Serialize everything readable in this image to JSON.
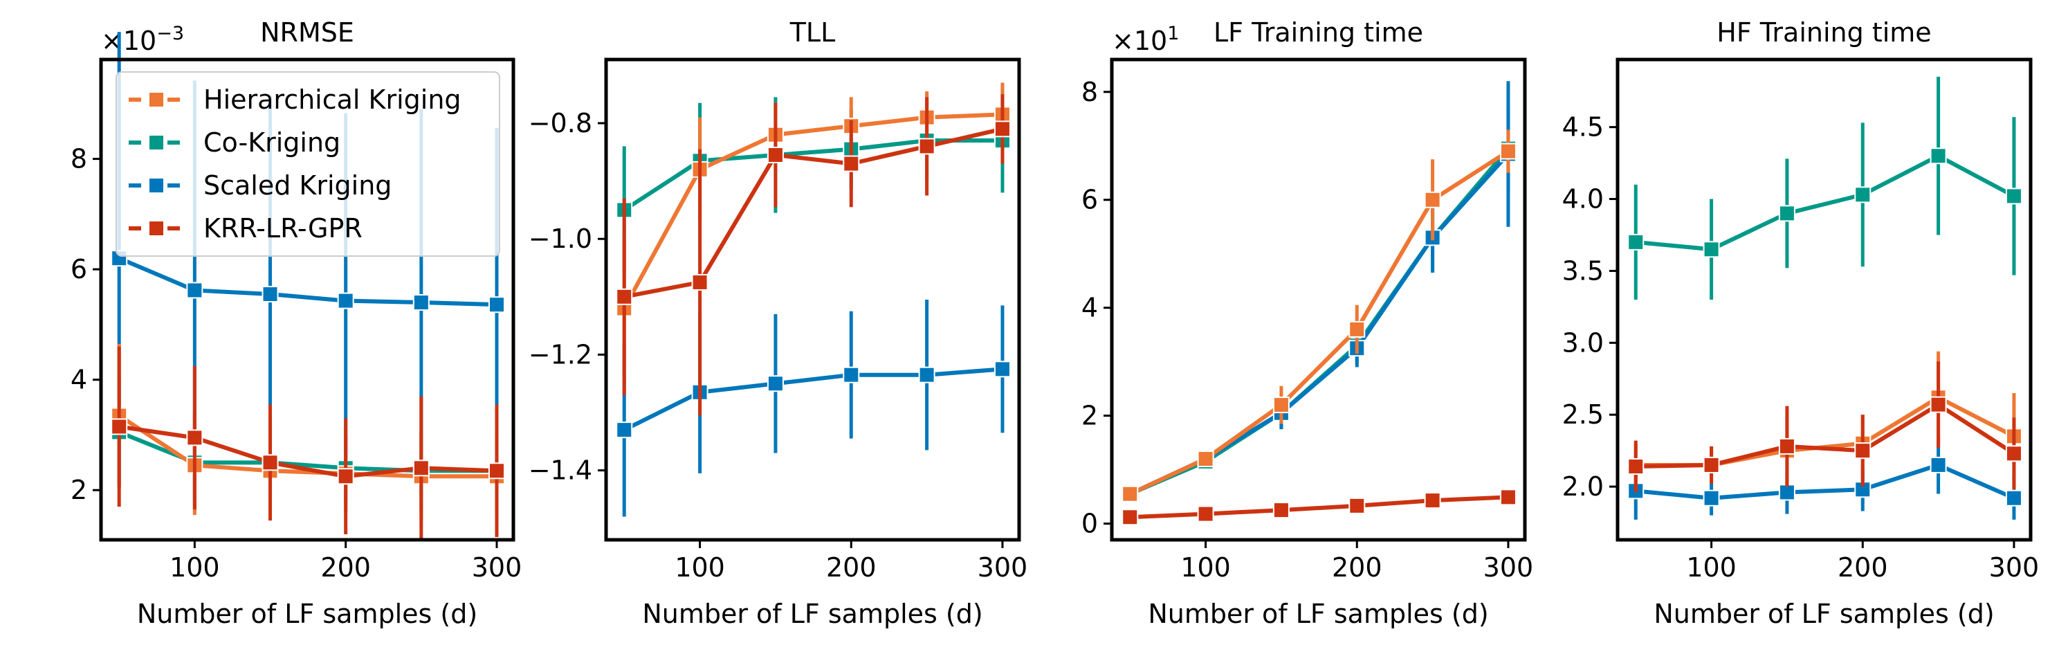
{
  "colors": {
    "Hierarchical Kriging": "#EE7733",
    "Co-Kriging": "#009988",
    "Scaled Kriging": "#0077BB",
    "KRR-LR-GPR": "#CC3311"
  },
  "chart_data": [
    {
      "type": "line",
      "title": "NRMSE",
      "xlabel": "Number of LF samples (d)",
      "ylabel": "",
      "y_multiplier": "×10",
      "y_multiplier_exp": "−3",
      "x": [
        50,
        100,
        150,
        200,
        250,
        300
      ],
      "xlim": [
        38,
        311
      ],
      "ylim": [
        1.1,
        9.8
      ],
      "xticks": [
        100,
        200,
        300
      ],
      "xtick_labels": [
        "100",
        "200",
        "300"
      ],
      "yticks": [
        2,
        4,
        6,
        8
      ],
      "ytick_labels": [
        "2",
        "4",
        "6",
        "8"
      ],
      "grid": false,
      "legend": "top-left",
      "series": [
        {
          "name": "Hierarchical Kriging",
          "values": [
            3.35,
            2.45,
            2.35,
            2.3,
            2.25,
            2.25
          ],
          "err": [
            1.3,
            0.9,
            0.85,
            0.7,
            0.8,
            0.75
          ]
        },
        {
          "name": "Co-Kriging",
          "values": [
            3.05,
            2.5,
            2.5,
            2.4,
            2.35,
            2.35
          ],
          "err": [
            1.0,
            0.9,
            0.8,
            0.6,
            0.7,
            0.75
          ]
        },
        {
          "name": "Scaled Kriging",
          "values": [
            6.2,
            5.62,
            5.55,
            5.43,
            5.4,
            5.36
          ],
          "err": [
            4.1,
            3.8,
            3.6,
            3.4,
            3.5,
            3.2
          ]
        },
        {
          "name": "KRR-LR-GPR",
          "values": [
            3.15,
            2.95,
            2.5,
            2.25,
            2.4,
            2.35
          ],
          "err": [
            1.45,
            1.3,
            1.05,
            1.05,
            1.3,
            1.2
          ]
        }
      ]
    },
    {
      "type": "line",
      "title": "TLL",
      "xlabel": "Number of LF samples (d)",
      "ylabel": "",
      "x": [
        50,
        100,
        150,
        200,
        250,
        300
      ],
      "xlim": [
        38,
        311
      ],
      "ylim": [
        -1.52,
        -0.69
      ],
      "xticks": [
        100,
        200,
        300
      ],
      "xtick_labels": [
        "100",
        "200",
        "300"
      ],
      "yticks": [
        -1.4,
        -1.2,
        -1.0,
        -0.8
      ],
      "ytick_labels": [
        "−1.4",
        "−1.2",
        "−1.0",
        "−0.8"
      ],
      "grid": false,
      "series": [
        {
          "name": "Hierarchical Kriging",
          "values": [
            -1.12,
            -0.88,
            -0.82,
            -0.805,
            -0.79,
            -0.785
          ],
          "err": [
            0.12,
            0.09,
            0.055,
            0.05,
            0.045,
            0.055
          ]
        },
        {
          "name": "Co-Kriging",
          "values": [
            -0.95,
            -0.865,
            -0.855,
            -0.845,
            -0.83,
            -0.83
          ],
          "err": [
            0.11,
            0.1,
            0.1,
            0.07,
            0.07,
            0.09
          ]
        },
        {
          "name": "Scaled Kriging",
          "values": [
            -1.33,
            -1.265,
            -1.25,
            -1.235,
            -1.235,
            -1.225
          ],
          "err": [
            0.15,
            0.14,
            0.12,
            0.11,
            0.13,
            0.11
          ]
        },
        {
          "name": "KRR-LR-GPR",
          "values": [
            -1.1,
            -1.075,
            -0.855,
            -0.87,
            -0.84,
            -0.81
          ],
          "err": [
            0.17,
            0.23,
            0.09,
            0.075,
            0.085,
            0.06
          ]
        }
      ]
    },
    {
      "type": "line",
      "title": "LF Training time",
      "xlabel": "Number of LF samples (d)",
      "ylabel": "",
      "y_multiplier": "×10",
      "y_multiplier_exp": "1",
      "x": [
        50,
        100,
        150,
        200,
        250,
        300
      ],
      "xlim": [
        38,
        311
      ],
      "ylim": [
        -0.3,
        8.6
      ],
      "xticks": [
        100,
        200,
        300
      ],
      "xtick_labels": [
        "100",
        "200",
        "300"
      ],
      "yticks": [
        0,
        2,
        4,
        6,
        8
      ],
      "ytick_labels": [
        "0",
        "2",
        "4",
        "6",
        "8"
      ],
      "grid": false,
      "series": [
        {
          "name": "Hierarchical Kriging",
          "values": [
            0.55,
            1.2,
            2.2,
            3.6,
            6.0,
            6.9
          ],
          "err": [
            0.05,
            0.1,
            0.35,
            0.45,
            0.75,
            0.4
          ]
        },
        {
          "name": "Co-Kriging",
          "values": [
            0.55,
            1.15,
            2.05,
            3.3,
            5.3,
            6.95
          ],
          "err": [
            0.05,
            0.1,
            0.3,
            0.35,
            0.6,
            0.8
          ]
        },
        {
          "name": "Scaled Kriging",
          "values": [
            0.55,
            1.2,
            2.05,
            3.25,
            5.3,
            6.85
          ],
          "err": [
            0.05,
            0.1,
            0.3,
            0.35,
            0.65,
            1.35
          ]
        },
        {
          "name": "KRR-LR-GPR",
          "values": [
            0.12,
            0.18,
            0.25,
            0.33,
            0.43,
            0.49
          ],
          "err": [
            0.03,
            0.03,
            0.04,
            0.05,
            0.06,
            0.06
          ]
        }
      ]
    },
    {
      "type": "line",
      "title": "HF Training time",
      "xlabel": "Number of LF samples (d)",
      "ylabel": "",
      "x": [
        50,
        100,
        150,
        200,
        250,
        300
      ],
      "xlim": [
        38,
        311
      ],
      "ylim": [
        1.63,
        4.97
      ],
      "xticks": [
        100,
        200,
        300
      ],
      "xtick_labels": [
        "100",
        "200",
        "300"
      ],
      "yticks": [
        2.0,
        2.5,
        3.0,
        3.5,
        4.0,
        4.5
      ],
      "ytick_labels": [
        "2.0",
        "2.5",
        "3.0",
        "3.5",
        "4.0",
        "4.5"
      ],
      "grid": false,
      "series": [
        {
          "name": "Hierarchical Kriging",
          "values": [
            2.15,
            2.15,
            2.25,
            2.3,
            2.62,
            2.35
          ],
          "err": [
            0.15,
            0.12,
            0.25,
            0.2,
            0.32,
            0.3
          ]
        },
        {
          "name": "Co-Kriging",
          "values": [
            3.7,
            3.65,
            3.9,
            4.03,
            4.3,
            4.02
          ],
          "err": [
            0.4,
            0.35,
            0.38,
            0.5,
            0.55,
            0.55
          ]
        },
        {
          "name": "Scaled Kriging",
          "values": [
            1.97,
            1.92,
            1.96,
            1.98,
            2.15,
            1.92
          ],
          "err": [
            0.2,
            0.12,
            0.15,
            0.15,
            0.2,
            0.15
          ]
        },
        {
          "name": "KRR-LR-GPR",
          "values": [
            2.14,
            2.15,
            2.28,
            2.25,
            2.57,
            2.23
          ],
          "err": [
            0.18,
            0.13,
            0.28,
            0.25,
            0.3,
            0.25
          ]
        }
      ]
    }
  ]
}
